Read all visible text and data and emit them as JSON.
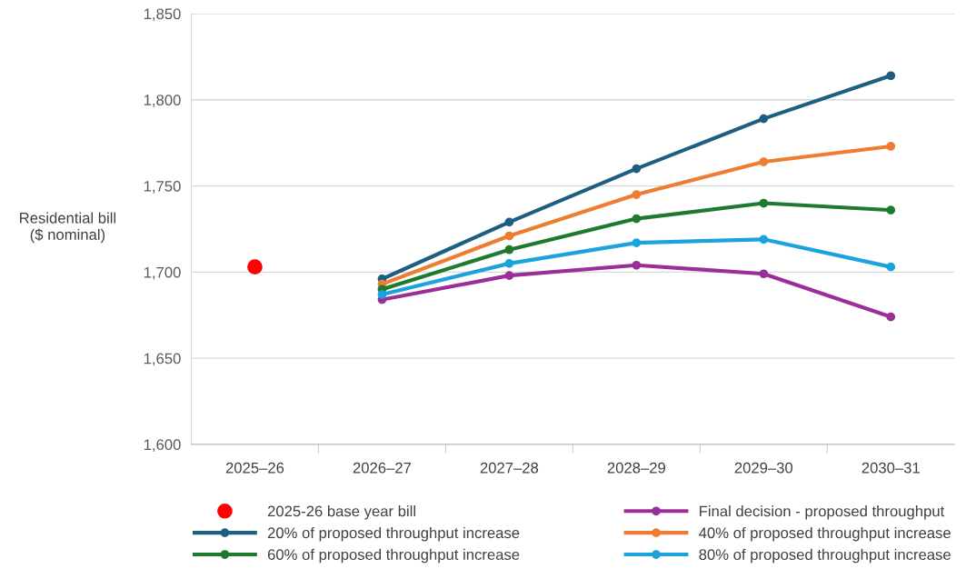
{
  "chart_data": {
    "type": "line",
    "ylabel": "Residential bill\n($ nominal)",
    "categories": [
      "2025–26",
      "2026–27",
      "2027–28",
      "2028–29",
      "2029–30",
      "2030–31"
    ],
    "series": [
      {
        "name": "2025-26 base year bill",
        "type": "scatter",
        "color": "#ff0000",
        "values": [
          1703,
          null,
          null,
          null,
          null,
          null
        ]
      },
      {
        "name": "Final decision - proposed throughput",
        "color": "#9a2f98",
        "values": [
          null,
          1684,
          1698,
          1704,
          1699,
          1674
        ]
      },
      {
        "name": "20% of proposed throughput increase",
        "color": "#1d5e82",
        "values": [
          null,
          1696,
          1729,
          1760,
          1789,
          1814
        ]
      },
      {
        "name": "40% of proposed throughput increase",
        "color": "#ed7d31",
        "values": [
          null,
          1693,
          1721,
          1745,
          1764,
          1773
        ]
      },
      {
        "name": "60% of proposed throughput increase",
        "color": "#1e7a2e",
        "values": [
          null,
          1690,
          1713,
          1731,
          1740,
          1736
        ]
      },
      {
        "name": "80% of proposed throughput increase",
        "color": "#1aa3dc",
        "values": [
          null,
          1687,
          1705,
          1717,
          1719,
          1703
        ]
      }
    ],
    "ylim": [
      1600,
      1850
    ],
    "yticks": [
      {
        "value": 1600,
        "label": "1,600"
      },
      {
        "value": 1650,
        "label": "1,650"
      },
      {
        "value": 1700,
        "label": "1,700"
      },
      {
        "value": 1750,
        "label": "1,750"
      },
      {
        "value": 1800,
        "label": "1,800"
      },
      {
        "value": 1850,
        "label": "1,850"
      }
    ],
    "grid": "y",
    "legend": "bottom",
    "marker": "circle",
    "line_style": "solid"
  }
}
